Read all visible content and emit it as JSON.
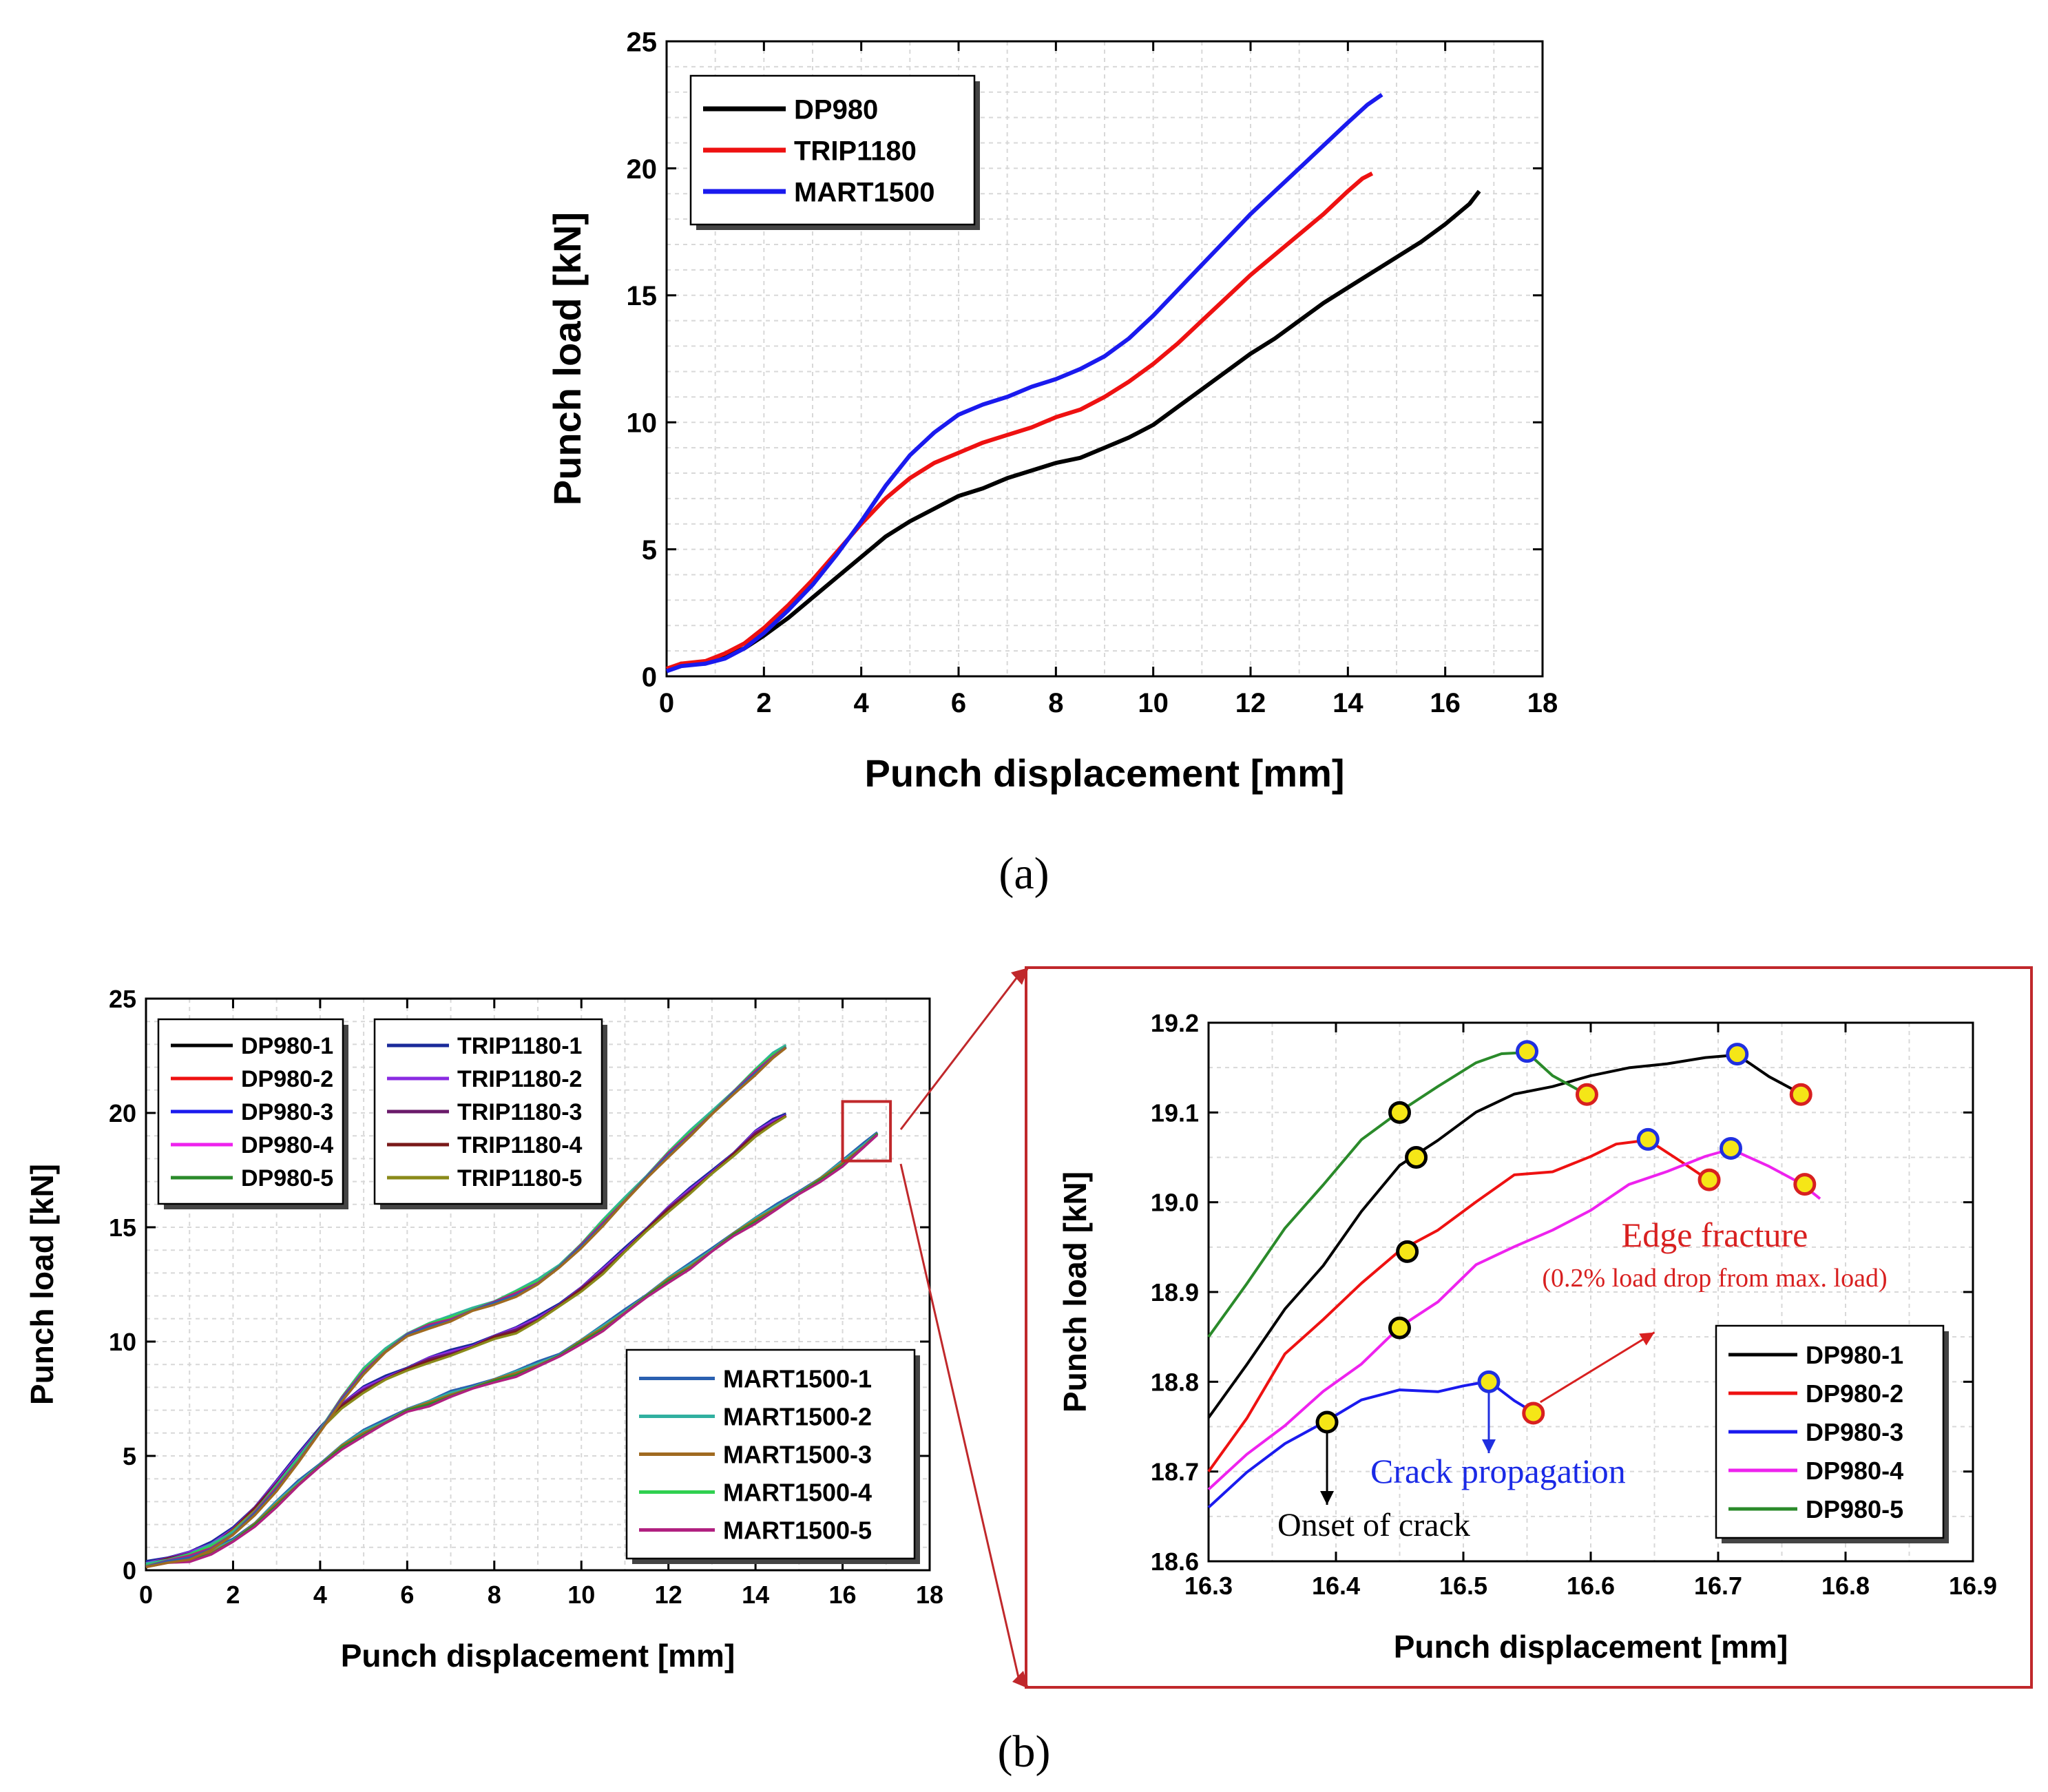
{
  "panel_labels": {
    "a": "(a)",
    "b": "(b)"
  },
  "colors": {
    "DP980": "#000000",
    "TRIP1180": "#ee1111",
    "MART1500": "#1a1aee",
    "zoom_frame": "#c0282b",
    "marker_onset": "#000000",
    "marker_propagation": "#2030e0",
    "marker_edge": "#d82020",
    "marker_fill": "#f5e617"
  },
  "chart_data": [
    {
      "id": "a",
      "type": "line",
      "title": "",
      "xlabel": "Punch displacement [mm]",
      "ylabel": "Punch load [kN]",
      "xlim": [
        0,
        18
      ],
      "ylim": [
        0,
        25
      ],
      "xticks": [
        "0",
        "2",
        "4",
        "6",
        "8",
        "10",
        "12",
        "14",
        "16",
        "18"
      ],
      "yticks": [
        "0",
        "5",
        "10",
        "15",
        "20",
        "25"
      ],
      "grid": true,
      "legend": "top-left",
      "series": [
        {
          "name": "DP980",
          "color": "#000000",
          "x": [
            0,
            0.3,
            0.8,
            1.2,
            1.6,
            2,
            2.5,
            3,
            3.5,
            4,
            4.5,
            5,
            5.5,
            6,
            6.5,
            7,
            7.5,
            8,
            8.5,
            9,
            9.5,
            10,
            10.5,
            11,
            11.5,
            12,
            12.5,
            13,
            13.5,
            14,
            14.5,
            15,
            15.5,
            16,
            16.5,
            16.7
          ],
          "y": [
            0.2,
            0.5,
            0.5,
            0.8,
            1.1,
            1.6,
            2.3,
            3.1,
            3.9,
            4.7,
            5.5,
            6.1,
            6.6,
            7.1,
            7.4,
            7.8,
            8.1,
            8.4,
            8.6,
            9.0,
            9.4,
            9.9,
            10.6,
            11.3,
            12.0,
            12.7,
            13.3,
            14.0,
            14.7,
            15.3,
            15.9,
            16.5,
            17.1,
            17.8,
            18.6,
            19.1
          ]
        },
        {
          "name": "TRIP1180",
          "color": "#ee1111",
          "x": [
            0,
            0.3,
            0.8,
            1.2,
            1.6,
            2,
            2.5,
            3,
            3.5,
            4,
            4.5,
            5,
            5.5,
            6,
            6.5,
            7,
            7.5,
            8,
            8.5,
            9,
            9.5,
            10,
            10.5,
            11,
            11.5,
            12,
            12.5,
            13,
            13.5,
            14,
            14.3,
            14.5
          ],
          "y": [
            0.3,
            0.5,
            0.6,
            0.9,
            1.3,
            1.9,
            2.8,
            3.8,
            4.9,
            6.0,
            7.0,
            7.8,
            8.4,
            8.8,
            9.2,
            9.5,
            9.8,
            10.2,
            10.5,
            11.0,
            11.6,
            12.3,
            13.1,
            14.0,
            14.9,
            15.8,
            16.6,
            17.4,
            18.2,
            19.1,
            19.6,
            19.8
          ]
        },
        {
          "name": "MART1500",
          "color": "#1a1aee",
          "x": [
            0,
            0.3,
            0.8,
            1.2,
            1.6,
            2,
            2.5,
            3,
            3.5,
            4,
            4.5,
            5,
            5.5,
            6,
            6.5,
            7,
            7.5,
            8,
            8.5,
            9,
            9.5,
            10,
            10.5,
            11,
            11.5,
            12,
            12.5,
            13,
            13.5,
            14,
            14.4,
            14.7
          ],
          "y": [
            0.2,
            0.4,
            0.5,
            0.7,
            1.1,
            1.7,
            2.6,
            3.6,
            4.8,
            6.1,
            7.5,
            8.7,
            9.6,
            10.3,
            10.7,
            11.0,
            11.4,
            11.7,
            12.1,
            12.6,
            13.3,
            14.2,
            15.2,
            16.2,
            17.2,
            18.2,
            19.1,
            20.0,
            20.9,
            21.8,
            22.5,
            22.9
          ]
        }
      ]
    },
    {
      "id": "b-left",
      "type": "line",
      "title": "",
      "xlabel": "Punch displacement [mm]",
      "ylabel": "Punch load [kN]",
      "xlim": [
        0,
        18
      ],
      "ylim": [
        0,
        25
      ],
      "xticks": [
        "0",
        "2",
        "4",
        "6",
        "8",
        "10",
        "12",
        "14",
        "16",
        "18"
      ],
      "yticks": [
        "0",
        "5",
        "10",
        "15",
        "20",
        "25"
      ],
      "grid": true,
      "legends": [
        {
          "placement": "top-left",
          "entries": [
            {
              "name": "DP980-1",
              "color": "#000000"
            },
            {
              "name": "DP980-2",
              "color": "#ee1111"
            },
            {
              "name": "DP980-3",
              "color": "#1a1aee"
            },
            {
              "name": "DP980-4",
              "color": "#ee22ee"
            },
            {
              "name": "DP980-5",
              "color": "#2a8a2a"
            }
          ]
        },
        {
          "placement": "top-center",
          "entries": [
            {
              "name": "TRIP1180-1",
              "color": "#1a2a9a"
            },
            {
              "name": "TRIP1180-2",
              "color": "#8a2be2"
            },
            {
              "name": "TRIP1180-3",
              "color": "#6a1a6a"
            },
            {
              "name": "TRIP1180-4",
              "color": "#7a1a1a"
            },
            {
              "name": "TRIP1180-5",
              "color": "#8a8a1a"
            }
          ]
        },
        {
          "placement": "bottom-right",
          "entries": [
            {
              "name": "MART1500-1",
              "color": "#2a60b0"
            },
            {
              "name": "MART1500-2",
              "color": "#30b0a0"
            },
            {
              "name": "MART1500-3",
              "color": "#a06a20"
            },
            {
              "name": "MART1500-4",
              "color": "#30d050"
            },
            {
              "name": "MART1500-5",
              "color": "#b02080"
            }
          ]
        }
      ],
      "groups": [
        {
          "group": "lowest",
          "colors": [
            "#2a60b0",
            "#30b0a0",
            "#a06a20",
            "#2a8a2a",
            "#b02080"
          ],
          "x": [
            0,
            0.5,
            1,
            1.5,
            2,
            2.5,
            3,
            3.5,
            4,
            4.5,
            5,
            5.5,
            6,
            6.5,
            7,
            7.5,
            8,
            8.5,
            9,
            9.5,
            10,
            10.5,
            11,
            11.5,
            12,
            12.5,
            13,
            13.5,
            14,
            14.5,
            15,
            15.5,
            16,
            16.5,
            16.8
          ],
          "y": [
            0.2,
            0.4,
            0.5,
            0.8,
            1.3,
            2.0,
            2.9,
            3.8,
            4.6,
            5.4,
            6.0,
            6.5,
            7.0,
            7.3,
            7.7,
            8.0,
            8.3,
            8.6,
            9.0,
            9.4,
            10.0,
            10.6,
            11.3,
            12.0,
            12.7,
            13.3,
            14.0,
            14.7,
            15.3,
            15.9,
            16.5,
            17.1,
            17.8,
            18.6,
            19.1
          ]
        },
        {
          "group": "middle",
          "colors": [
            "#1a2a9a",
            "#8a2be2",
            "#6a1a6a",
            "#7a1a1a",
            "#8a8a1a"
          ],
          "x": [
            0,
            0.5,
            1,
            1.5,
            2,
            2.5,
            3,
            3.5,
            4,
            4.5,
            5,
            5.5,
            6,
            6.5,
            7,
            7.5,
            8,
            8.5,
            9,
            9.5,
            10,
            10.5,
            11,
            11.5,
            12,
            12.5,
            13,
            13.5,
            14,
            14.4,
            14.7
          ],
          "y": [
            0.3,
            0.5,
            0.7,
            1.1,
            1.8,
            2.7,
            3.8,
            5.0,
            6.2,
            7.2,
            7.9,
            8.4,
            8.8,
            9.2,
            9.5,
            9.8,
            10.2,
            10.5,
            11.0,
            11.6,
            12.3,
            13.1,
            14.0,
            14.9,
            15.8,
            16.6,
            17.4,
            18.2,
            19.1,
            19.6,
            19.9
          ]
        },
        {
          "group": "highest",
          "colors": [
            "#30b0a0",
            "#30d050",
            "#b02080",
            "#2a60b0",
            "#a06a20"
          ],
          "x": [
            0,
            0.5,
            1,
            1.5,
            2,
            2.5,
            3,
            3.5,
            4,
            4.5,
            5,
            5.5,
            6,
            6.5,
            7,
            7.5,
            8,
            8.5,
            9,
            9.5,
            10,
            10.5,
            11,
            11.5,
            12,
            12.5,
            13,
            13.5,
            14,
            14.4,
            14.7
          ],
          "y": [
            0.2,
            0.4,
            0.6,
            1.0,
            1.6,
            2.5,
            3.6,
            4.8,
            6.1,
            7.5,
            8.7,
            9.6,
            10.3,
            10.7,
            11.0,
            11.4,
            11.7,
            12.1,
            12.6,
            13.3,
            14.2,
            15.2,
            16.2,
            17.2,
            18.2,
            19.1,
            20.0,
            20.9,
            21.8,
            22.5,
            22.9
          ]
        }
      ]
    },
    {
      "id": "b-zoom",
      "type": "line",
      "title": "",
      "xlabel": "Punch displacement [mm]",
      "ylabel": "Punch load [kN]",
      "xlim": [
        16.3,
        16.9
      ],
      "ylim": [
        18.6,
        19.2
      ],
      "xticks": [
        "16.3",
        "16.4",
        "16.5",
        "16.6",
        "16.7",
        "16.8",
        "16.9"
      ],
      "yticks": [
        "18.6",
        "18.7",
        "18.8",
        "18.9",
        "19.0",
        "19.1",
        "19.2"
      ],
      "grid": true,
      "legend": "bottom-right",
      "series": [
        {
          "name": "DP980-1",
          "color": "#000000",
          "x": [
            16.3,
            16.33,
            16.36,
            16.39,
            16.42,
            16.45,
            16.48,
            16.51,
            16.54,
            16.57,
            16.6,
            16.63,
            16.66,
            16.69,
            16.715,
            16.74,
            16.765
          ],
          "y": [
            18.76,
            18.82,
            18.88,
            18.93,
            18.99,
            19.04,
            19.07,
            19.1,
            19.12,
            19.13,
            19.14,
            19.15,
            19.155,
            19.16,
            19.165,
            19.14,
            19.12
          ],
          "onset": [
            16.463,
            19.05
          ],
          "propagation": [
            16.715,
            19.165
          ],
          "edge": [
            16.765,
            19.12
          ]
        },
        {
          "name": "DP980-2",
          "color": "#ee1111",
          "x": [
            16.3,
            16.33,
            16.36,
            16.39,
            16.42,
            16.45,
            16.48,
            16.51,
            16.54,
            16.57,
            16.6,
            16.62,
            16.645,
            16.67,
            16.693
          ],
          "y": [
            18.7,
            18.76,
            18.83,
            18.87,
            18.91,
            18.945,
            18.97,
            19.0,
            19.03,
            19.035,
            19.05,
            19.065,
            19.07,
            19.045,
            19.025
          ],
          "onset": [
            16.456,
            18.945
          ],
          "propagation": [
            16.645,
            19.07
          ],
          "edge": [
            16.693,
            19.025
          ]
        },
        {
          "name": "DP980-3",
          "color": "#1a1aee",
          "x": [
            16.3,
            16.33,
            16.36,
            16.39,
            16.42,
            16.45,
            16.48,
            16.5,
            16.52,
            16.54,
            16.555
          ],
          "y": [
            18.66,
            18.7,
            18.73,
            18.755,
            18.78,
            18.79,
            18.79,
            18.795,
            18.8,
            18.78,
            18.765
          ],
          "onset": [
            16.393,
            18.755
          ],
          "propagation": [
            16.52,
            18.8
          ],
          "edge": [
            16.555,
            18.765
          ]
        },
        {
          "name": "DP980-4",
          "color": "#ee22ee",
          "x": [
            16.3,
            16.33,
            16.36,
            16.39,
            16.42,
            16.45,
            16.48,
            16.51,
            16.54,
            16.57,
            16.6,
            16.63,
            16.66,
            16.69,
            16.71,
            16.74,
            16.765,
            16.78
          ],
          "y": [
            18.68,
            18.72,
            18.75,
            18.79,
            18.82,
            18.86,
            18.89,
            18.93,
            18.95,
            18.97,
            18.99,
            19.02,
            19.035,
            19.05,
            19.06,
            19.04,
            19.02,
            19.005
          ],
          "onset": [
            16.45,
            18.86
          ],
          "propagation": [
            16.71,
            19.06
          ],
          "edge": [
            16.768,
            19.02
          ]
        },
        {
          "name": "DP980-5",
          "color": "#2a8a2a",
          "x": [
            16.3,
            16.33,
            16.36,
            16.39,
            16.42,
            16.45,
            16.48,
            16.51,
            16.53,
            16.55,
            16.57,
            16.597
          ],
          "y": [
            18.85,
            18.91,
            18.97,
            19.02,
            19.07,
            19.1,
            19.13,
            19.155,
            19.165,
            19.168,
            19.14,
            19.12
          ],
          "onset": [
            16.45,
            19.1
          ],
          "propagation": [
            16.55,
            19.168
          ],
          "edge": [
            16.597,
            19.12
          ]
        }
      ],
      "annotations": {
        "onset": "Onset of crack",
        "propagation": "Crack propagation",
        "edge_title": "Edge fracture",
        "edge_sub": "(0.2% load drop from max. load)"
      }
    }
  ]
}
